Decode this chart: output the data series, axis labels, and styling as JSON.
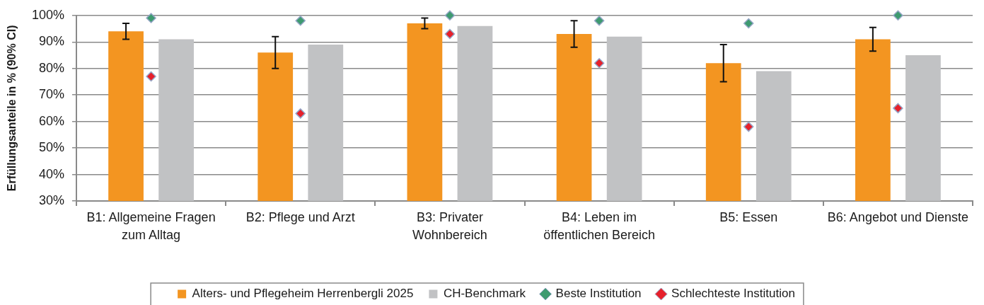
{
  "chart_data": {
    "type": "bar",
    "ylabel": "Erfüllungsanteile in % (90% CI)",
    "categories": [
      "B1: Allgemeine Fragen\nzum Alltag",
      "B2: Pflege und Arzt",
      "B3: Privater\nWohnbereich",
      "B4: Leben im\nöffentlichen Bereich",
      "B5: Essen",
      "B6: Angebot und Dienste"
    ],
    "series": [
      {
        "name": "Alters- und Pflegeheim Herrenbergli 2025",
        "color": "#f39521",
        "values": [
          94,
          86,
          97,
          93,
          82,
          91
        ],
        "errors": [
          [
            91,
            97
          ],
          [
            80,
            92
          ],
          [
            95,
            99
          ],
          [
            88,
            98
          ],
          [
            75,
            89
          ],
          [
            86.5,
            95.5
          ]
        ]
      },
      {
        "name": "CH-Benchmark",
        "color": "#c1c2c4",
        "values": [
          91,
          89,
          96,
          92,
          79,
          85
        ]
      },
      {
        "name": "Beste Institution",
        "type": "scatter",
        "color": "#3e9a70",
        "values": [
          99,
          98,
          100,
          98,
          97,
          100
        ]
      },
      {
        "name": "Schlechteste Institution",
        "type": "scatter",
        "color": "#e6202b",
        "values": [
          77,
          63,
          93,
          82,
          58,
          65
        ]
      }
    ],
    "ylim": [
      30,
      100
    ],
    "yticks": [
      {
        "value": 30,
        "label": "30%"
      },
      {
        "value": 40,
        "label": "40%"
      },
      {
        "value": 50,
        "label": "50%"
      },
      {
        "value": 60,
        "label": "60%"
      },
      {
        "value": 70,
        "label": "70%"
      },
      {
        "value": 80,
        "label": "80%"
      },
      {
        "value": 90,
        "label": "90%"
      },
      {
        "value": 100,
        "label": "100%"
      }
    ],
    "grid": "y",
    "legend": "bottom",
    "marker": "diamond"
  }
}
